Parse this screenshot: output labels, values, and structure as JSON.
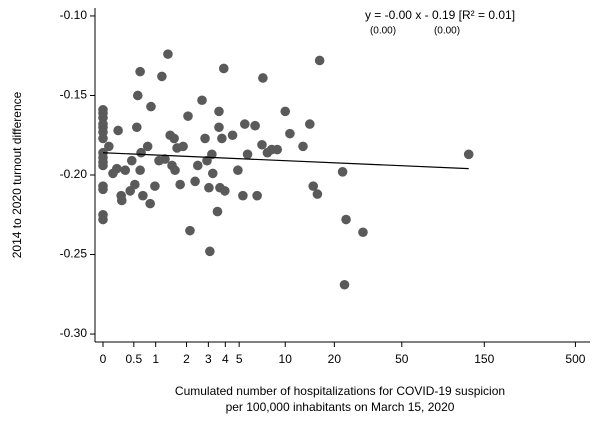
{
  "chart_data": {
    "type": "scatter",
    "xlabel": [
      "Cumulated number of hospitalizations for COVID-19 suspicion",
      "per 100,000 inhabitants on March 15, 2020"
    ],
    "ylabel": "2014 to 2020 turnout difference",
    "annotation": {
      "equation": "y = -0.00 x - 0.19 [R² = 0.01]",
      "se": [
        "(0.00)",
        "(0.00)"
      ]
    },
    "xscale": "log1p",
    "xlim": [
      -0.1,
      606
    ],
    "ylim": [
      -0.305,
      -0.095
    ],
    "xticks": [
      0,
      0.5,
      1,
      2,
      3,
      4,
      5,
      10,
      20,
      50,
      150,
      500
    ],
    "yticks": [
      {
        "value": -0.1,
        "label": "-0.10"
      },
      {
        "value": -0.15,
        "label": "-0.15"
      },
      {
        "value": -0.2,
        "label": "-0.20"
      },
      {
        "value": -0.25,
        "label": "-0.25"
      },
      {
        "value": -0.3,
        "label": "-0.30"
      }
    ],
    "color": "#5a5a5a",
    "fit": {
      "x": [
        0,
        122
      ],
      "y": [
        -0.186,
        -0.196
      ],
      "color": "#000000"
    },
    "x": [
      0,
      0,
      0,
      0,
      0,
      0,
      0,
      0,
      0,
      0,
      0,
      0,
      0,
      0,
      0,
      0.08,
      0.14,
      0.2,
      0.22,
      0.27,
      0.28,
      0.34,
      0.43,
      0.46,
      0.52,
      0.56,
      0.58,
      0.63,
      0.63,
      0.65,
      0.69,
      0.8,
      0.86,
      0.88,
      0.98,
      1.09,
      1.17,
      1.26,
      1.35,
      1.42,
      1.48,
      1.55,
      1.58,
      1.65,
      1.76,
      1.87,
      2.06,
      2.14,
      2.36,
      2.48,
      2.68,
      2.83,
      2.93,
      3.03,
      3.08,
      3.19,
      3.24,
      3.51,
      3.6,
      3.6,
      3.66,
      3.78,
      3.97,
      3.9,
      4.5,
      4.9,
      5.3,
      5.46,
      5.7,
      6.4,
      6.6,
      7.2,
      7.1,
      7.7,
      8.2,
      8.9,
      10.0,
      10.7,
      12.9,
      14.2,
      14.9,
      15.8,
      16.3,
      22.4,
      23.5,
      23,
      29.6,
      122
    ],
    "y": [
      -0.159,
      -0.161,
      -0.164,
      -0.168,
      -0.17,
      -0.173,
      -0.177,
      -0.186,
      -0.189,
      -0.192,
      -0.194,
      -0.207,
      -0.209,
      -0.225,
      -0.228,
      -0.182,
      -0.199,
      -0.196,
      -0.172,
      -0.213,
      -0.216,
      -0.197,
      -0.21,
      -0.191,
      -0.206,
      -0.17,
      -0.15,
      -0.135,
      -0.197,
      -0.186,
      -0.213,
      -0.182,
      -0.218,
      -0.157,
      -0.207,
      -0.191,
      -0.138,
      -0.19,
      -0.124,
      -0.175,
      -0.194,
      -0.177,
      -0.197,
      -0.183,
      -0.206,
      -0.182,
      -0.163,
      -0.235,
      -0.204,
      -0.194,
      -0.153,
      -0.177,
      -0.191,
      -0.208,
      -0.248,
      -0.187,
      -0.199,
      -0.223,
      -0.17,
      -0.16,
      -0.208,
      -0.177,
      -0.21,
      -0.133,
      -0.175,
      -0.197,
      -0.213,
      -0.168,
      -0.187,
      -0.169,
      -0.213,
      -0.139,
      -0.181,
      -0.186,
      -0.184,
      -0.184,
      -0.16,
      -0.174,
      -0.182,
      -0.168,
      -0.207,
      -0.212,
      -0.128,
      -0.198,
      -0.228,
      -0.269,
      -0.236,
      -0.187
    ]
  }
}
